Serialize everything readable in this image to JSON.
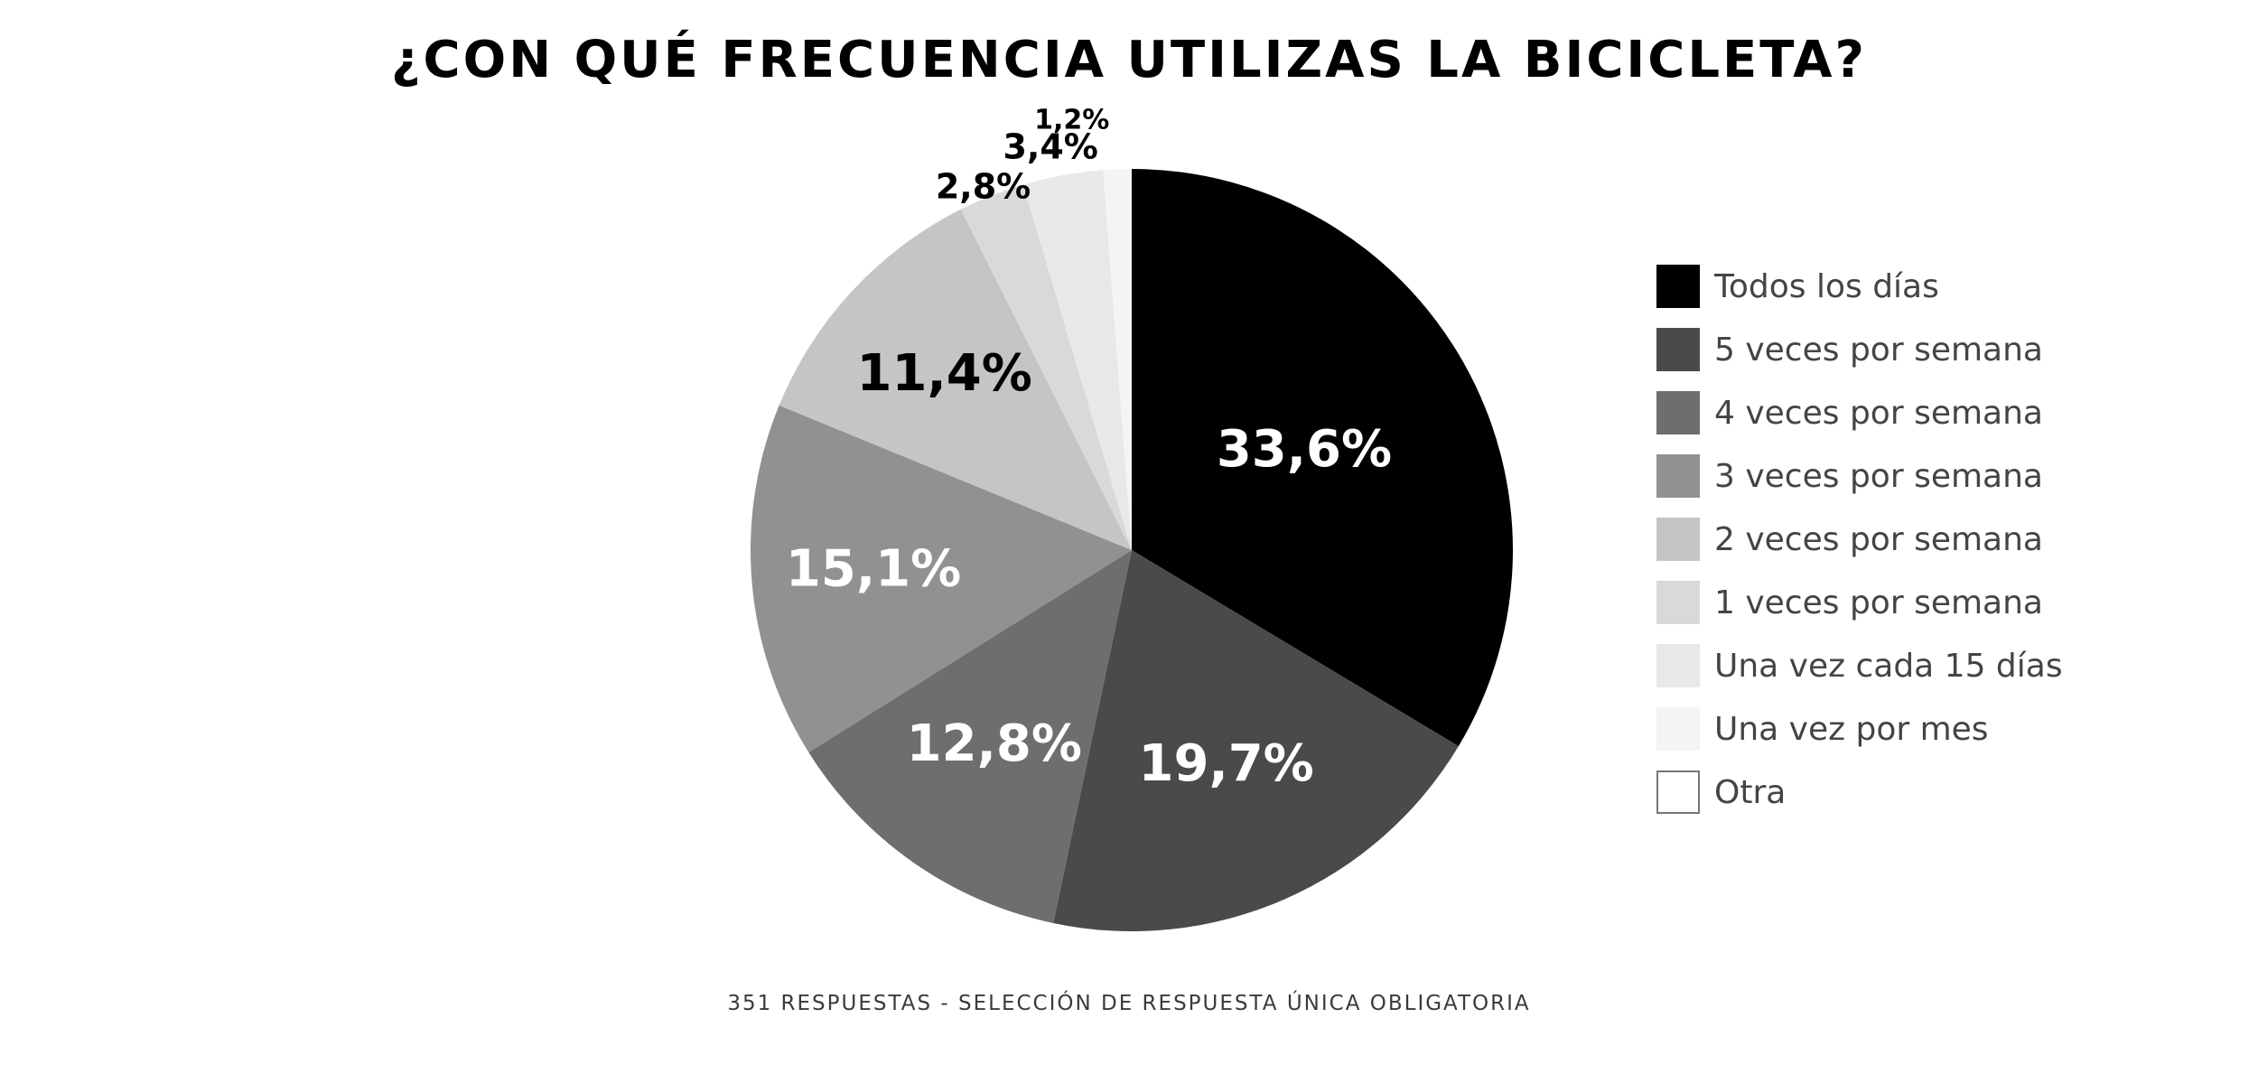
{
  "title": "¿CON QUÉ FRECUENCIA UTILIZAS LA BICICLETA?",
  "footnote": "351 RESPUESTAS  - SELECCIÓN DE RESPUESTA ÚNICA OBLIGATORIA",
  "legend_labels": [
    "Todos los días",
    "5 veces por semana",
    "4 veces por semana",
    "3 veces por semana",
    "2 veces por semana",
    "1 veces por semana",
    "Una vez cada 15 días",
    "Una vez por mes",
    "Otra"
  ],
  "chart_data": {
    "type": "pie",
    "title": "¿CON QUÉ FRECUENCIA UTILIZAS LA BICICLETA?",
    "categories": [
      "Todos los días",
      "5 veces por semana",
      "4 veces por semana",
      "3 veces por semana",
      "2 veces por semana",
      "1 veces por semana",
      "Una vez cada 15 días",
      "Una vez por mes",
      "Otra"
    ],
    "values": [
      33.6,
      19.7,
      12.8,
      15.1,
      11.4,
      2.8,
      3.4,
      1.2,
      0
    ],
    "data_labels": [
      "33,6%",
      "19,7%",
      "12,8%",
      "15,1%",
      "11,4%",
      "2,8%",
      "3,4%",
      "1,2%",
      ""
    ],
    "colors": [
      "#000000",
      "#4a4a4a",
      "#6f6e6f",
      "#919191",
      "#c6c5c6",
      "#d9d9d9",
      "#e8e8e8",
      "#f4f4f4",
      "#ffffff"
    ],
    "label_colors": [
      "#ffffff",
      "#ffffff",
      "#ffffff",
      "#ffffff",
      "#000000",
      "#000000",
      "#000000",
      "#000000",
      "#000000"
    ],
    "start_angle": "12 o'clock",
    "direction": "clockwise",
    "legend_position": "right"
  }
}
